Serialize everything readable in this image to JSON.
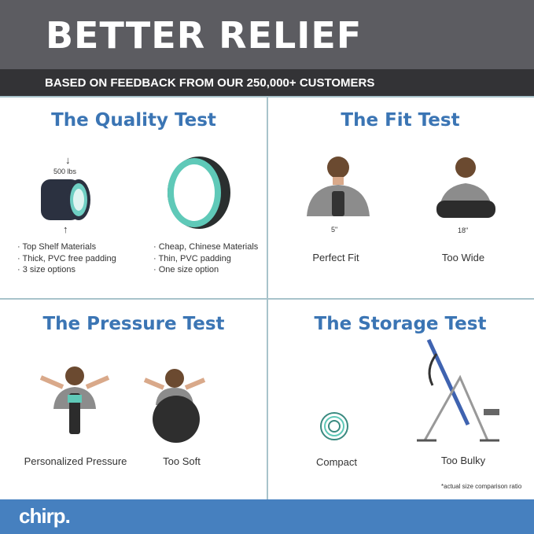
{
  "header": {
    "title": "BETTER RELIEF",
    "subtitle": "BASED ON FEEDBACK FROM OUR 250,000+ CUSTOMERS"
  },
  "quality": {
    "title": "The Quality Test",
    "weight": "500 lbs",
    "left_points": [
      "· Top Shelf Materials",
      "· Thick, PVC free padding",
      "· 3 size options"
    ],
    "right_points": [
      "· Cheap, Chinese Materials",
      "· Thin, PVC padding",
      "· One size option"
    ]
  },
  "fit": {
    "title": "The Fit Test",
    "left_measure": "5\"",
    "right_measure": "18\"",
    "left_label": "Perfect Fit",
    "right_label": "Too Wide"
  },
  "pressure": {
    "title": "The Pressure Test",
    "left_label": "Personalized Pressure",
    "right_label": "Too Soft"
  },
  "storage": {
    "title": "The Storage Test",
    "left_label": "Compact",
    "right_label": "Too Bulky",
    "note": "*actual size comparison ratio"
  },
  "footer": {
    "logo": "chirp."
  },
  "colors": {
    "accent": "#3b75b4",
    "footer": "#4680bf",
    "header": "#5c5c61",
    "wheel_teal": "#5fc9b8"
  }
}
